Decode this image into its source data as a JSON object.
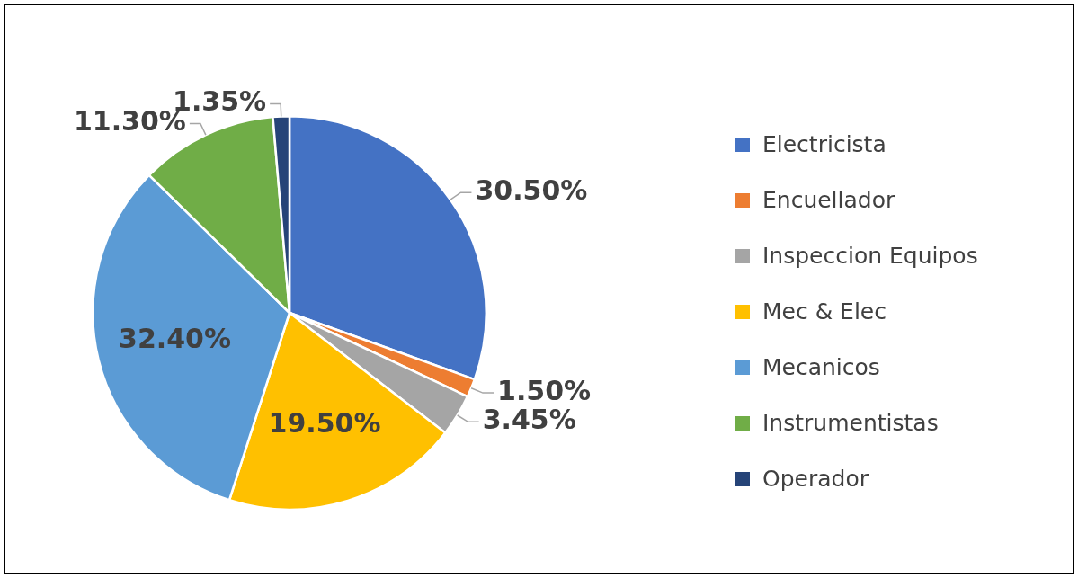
{
  "chart_data": {
    "type": "pie",
    "categories": [
      "Electricista",
      "Encuellador",
      "Inspeccion Equipos",
      "Mec & Elec",
      "Mecanicos",
      "Instrumentistas",
      "Operador"
    ],
    "values": [
      30.5,
      1.5,
      3.45,
      19.5,
      32.4,
      11.3,
      1.35
    ],
    "colors": [
      "#4472c4",
      "#ed7d31",
      "#a5a5a5",
      "#ffc000",
      "#5b9bd5",
      "#70ad47",
      "#264478"
    ],
    "value_labels": [
      "30.50%",
      "1.50%",
      "3.45%",
      "19.50%",
      "32.40%",
      "11.30%",
      "1.35%"
    ],
    "legend": "right"
  }
}
